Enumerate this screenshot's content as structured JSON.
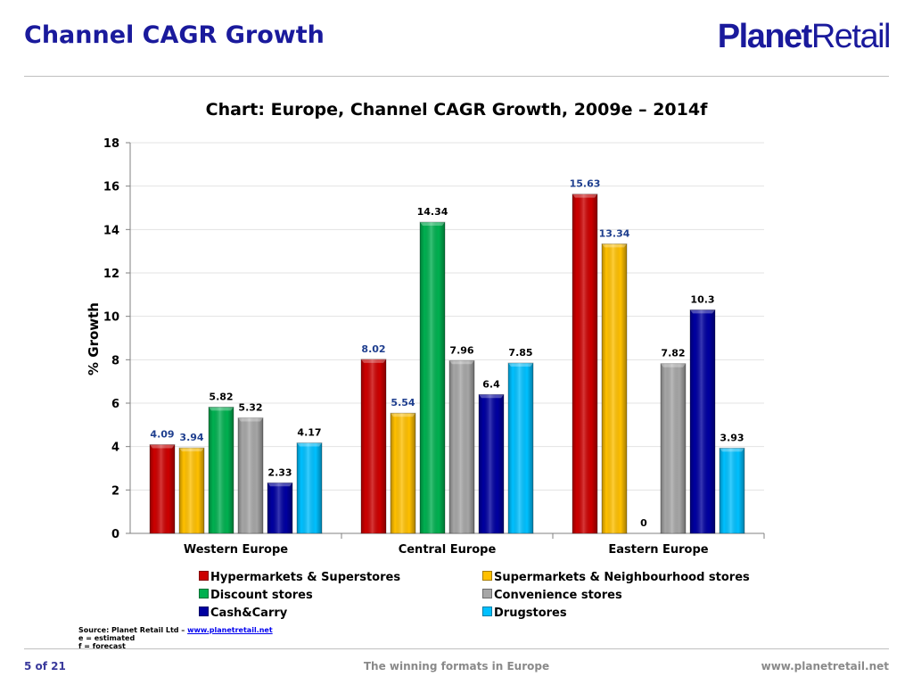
{
  "slide": {
    "title": "Channel CAGR Growth",
    "logo_bold": "Planet",
    "logo_regular": "Retail"
  },
  "footer": {
    "page": "5 of 21",
    "center": "The winning formats in Europe",
    "url": "www.planetretail.net"
  },
  "source": {
    "prefix": "Source: Planet Retail Ltd – ",
    "link": "www.planetretail.net",
    "note1": "e = estimated",
    "note2": "f = forecast"
  },
  "chart_data": {
    "type": "bar",
    "title": "Chart: Europe, Channel CAGR Growth, 2009e – 2014f",
    "xlabel": "",
    "ylabel": "% Growth",
    "ylim": [
      0,
      18
    ],
    "yticks": [
      0,
      2,
      4,
      6,
      8,
      10,
      12,
      14,
      16,
      18
    ],
    "grid": true,
    "legend_position": "bottom",
    "categories": [
      "Western Europe",
      "Central Europe",
      "Eastern Europe"
    ],
    "series": [
      {
        "name": "Hypermarkets & Superstores",
        "color": "#cc0000",
        "label_color": "#1f3f8f",
        "values": [
          4.09,
          8.02,
          15.63
        ]
      },
      {
        "name": "Supermarkets & Neighbourhood stores",
        "color": "#ffc000",
        "label_color": "#1f3f8f",
        "values": [
          3.94,
          5.54,
          13.34
        ]
      },
      {
        "name": "Discount stores",
        "color": "#00b050",
        "label_color": "#000000",
        "values": [
          5.82,
          14.34,
          0
        ]
      },
      {
        "name": "Convenience stores",
        "color": "#a6a6a6",
        "label_color": "#000000",
        "values": [
          5.32,
          7.96,
          7.82
        ]
      },
      {
        "name": "Cash&Carry",
        "color": "#0000a0",
        "label_color": "#000000",
        "values": [
          2.33,
          6.4,
          10.3
        ]
      },
      {
        "name": "Drugstores",
        "color": "#00c0ff",
        "label_color": "#000000",
        "values": [
          4.17,
          7.85,
          3.93
        ]
      }
    ]
  }
}
